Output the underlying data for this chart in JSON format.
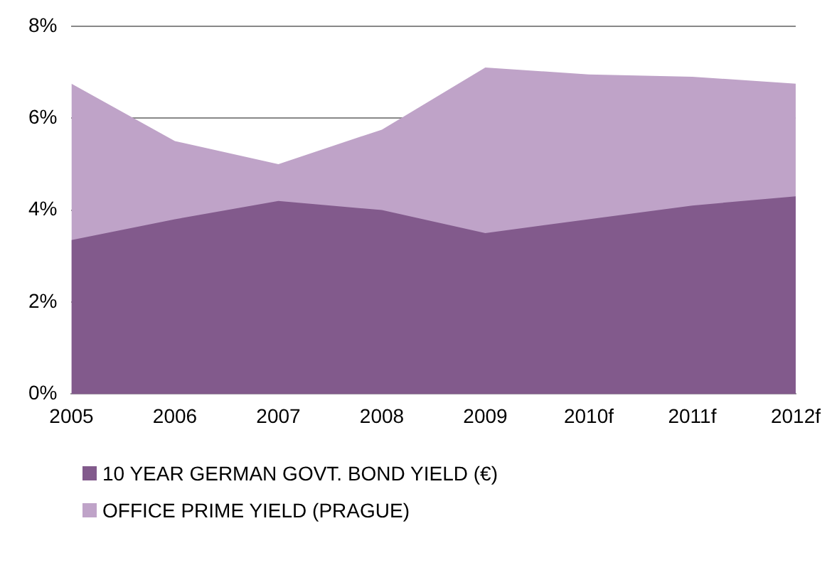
{
  "chart_data": {
    "type": "area",
    "categories": [
      "2005",
      "2006",
      "2007",
      "2008",
      "2009",
      "2010f",
      "2011f",
      "2012f"
    ],
    "series": [
      {
        "name": "10 YEAR GERMAN GOVT. BOND YIELD (€)",
        "color": "#825a8c",
        "values": [
          3.35,
          3.8,
          4.2,
          4.0,
          3.5,
          3.8,
          4.1,
          4.3
        ]
      },
      {
        "name": "OFFICE PRIME YIELD (PRAGUE)",
        "color": "#bfa3c8",
        "values": [
          6.75,
          5.5,
          5.0,
          5.75,
          7.1,
          6.95,
          6.9,
          6.75
        ]
      }
    ],
    "ylim": [
      0,
      8
    ],
    "yticks": [
      {
        "value": 0,
        "label": "0%"
      },
      {
        "value": 2,
        "label": "2%"
      },
      {
        "value": 4,
        "label": "4%"
      },
      {
        "value": 6,
        "label": "6%"
      },
      {
        "value": 8,
        "label": "8%"
      }
    ],
    "grid": "y",
    "legend": "bottom"
  }
}
